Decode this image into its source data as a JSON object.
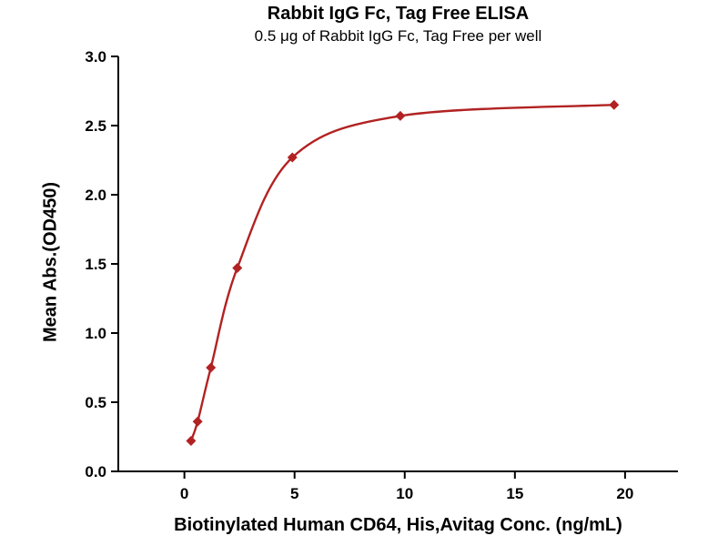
{
  "chart_data": {
    "type": "scatter",
    "title": "Rabbit IgG Fc, Tag Free ELISA",
    "subtitle": "0.5 μg of Rabbit IgG Fc, Tag Free per well",
    "xlabel": "Biotinylated Human CD64, His,Avitag Conc. (ng/mL)",
    "ylabel": "Mean Abs.(OD450)",
    "xlim": [
      -3,
      22.4
    ],
    "ylim": [
      0,
      3
    ],
    "xticks": [
      0,
      5,
      10,
      15,
      20
    ],
    "xtick_labels": [
      "0",
      "5",
      "10",
      "15",
      "20"
    ],
    "yticks": [
      0,
      0.5,
      1,
      1.5,
      2,
      2.5,
      3
    ],
    "ytick_labels": [
      "0.0",
      "0.5",
      "1.0",
      "1.5",
      "2.0",
      "2.5",
      "3.0"
    ],
    "points": {
      "x": [
        0.3,
        0.6,
        1.2,
        2.4,
        4.9,
        9.8,
        19.5
      ],
      "y": [
        0.22,
        0.36,
        0.75,
        1.47,
        2.27,
        2.57,
        2.65
      ]
    },
    "marker": "diamond",
    "line_color": "#b22222",
    "marker_color": "#b22222",
    "axis_color": "#000000",
    "grid": false,
    "legend": null
  }
}
